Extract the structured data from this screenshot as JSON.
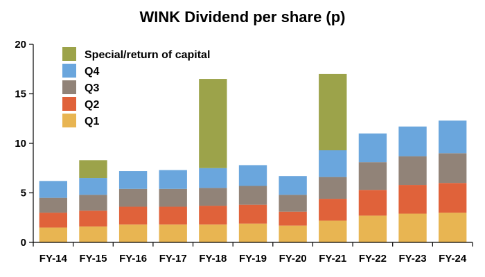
{
  "chart_data": {
    "type": "bar",
    "stacked": true,
    "title": "WINK Dividend per share (p)",
    "xlabel": "",
    "ylabel": "",
    "categories": [
      "FY-14",
      "FY-15",
      "FY-16",
      "FY-17",
      "FY-18",
      "FY-19",
      "FY-20",
      "FY-21",
      "FY-22",
      "FY-23",
      "FY-24"
    ],
    "ylim": [
      0,
      20
    ],
    "yticks": [
      "0",
      "5",
      "10",
      "15",
      "20"
    ],
    "grid": false,
    "legend_position": "top-left",
    "series": [
      {
        "name": "Q1",
        "color": "#E8B552",
        "values": [
          1.5,
          1.6,
          1.8,
          1.8,
          1.8,
          1.9,
          1.7,
          2.2,
          2.7,
          2.9,
          3.0
        ]
      },
      {
        "name": "Q2",
        "color": "#E0623A",
        "values": [
          1.5,
          1.6,
          1.8,
          1.8,
          1.9,
          1.9,
          1.4,
          2.2,
          2.6,
          2.9,
          3.0
        ]
      },
      {
        "name": "Q3",
        "color": "#918378",
        "values": [
          1.5,
          1.6,
          1.8,
          1.8,
          1.8,
          1.9,
          1.7,
          2.2,
          2.8,
          2.9,
          3.0
        ]
      },
      {
        "name": "Q4",
        "color": "#6AA6DD",
        "values": [
          1.7,
          1.7,
          1.8,
          1.9,
          2.0,
          2.1,
          1.9,
          2.7,
          2.9,
          3.0,
          3.3
        ]
      },
      {
        "name": "Special/return of capital",
        "color": "#9CA34A",
        "values": [
          0,
          1.8,
          0,
          0,
          9.0,
          0,
          0,
          7.7,
          0,
          0,
          0
        ]
      }
    ]
  }
}
